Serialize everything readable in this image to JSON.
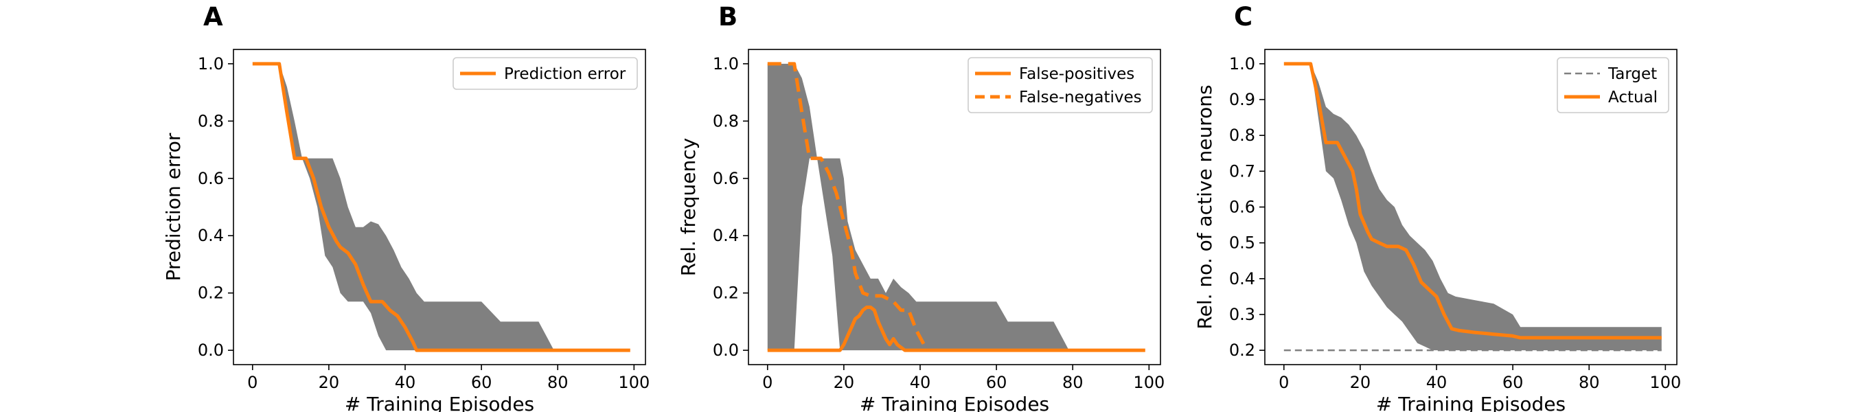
{
  "colors": {
    "line": "#ff7f0e",
    "band": "#808080",
    "target": "#808080",
    "axis": "#000000"
  },
  "chart_data": [
    {
      "type": "line",
      "panel": "A",
      "xlabel": "# Training Episodes",
      "ylabel": "Prediction error",
      "xlim": [
        -5,
        103
      ],
      "ylim": [
        -0.05,
        1.05
      ],
      "xticks": [
        0,
        20,
        40,
        60,
        80,
        100
      ],
      "yticks": [
        0.0,
        0.2,
        0.4,
        0.6,
        0.8,
        1.0
      ],
      "ytick_labels": [
        "0.0",
        "0.2",
        "0.4",
        "0.6",
        "0.8",
        "1.0"
      ],
      "legend": {
        "position": "top-right",
        "entries": [
          {
            "label": "Prediction error",
            "style": "solid"
          }
        ]
      },
      "band": {
        "x": [
          0,
          7,
          9,
          11,
          13,
          15,
          17,
          19,
          21,
          23,
          25,
          27,
          29,
          31,
          33,
          35,
          37,
          39,
          41,
          43,
          45,
          50,
          60,
          65,
          70,
          75,
          77,
          79,
          85,
          90,
          95,
          99
        ],
        "upper": [
          1.0,
          1.0,
          0.92,
          0.8,
          0.67,
          0.67,
          0.67,
          0.67,
          0.67,
          0.6,
          0.5,
          0.43,
          0.43,
          0.45,
          0.44,
          0.4,
          0.35,
          0.29,
          0.25,
          0.2,
          0.17,
          0.17,
          0.17,
          0.1,
          0.1,
          0.1,
          0.05,
          0.0,
          0.0,
          0.0,
          0.0,
          0.0
        ],
        "lower": [
          1.0,
          1.0,
          0.8,
          0.67,
          0.67,
          0.6,
          0.5,
          0.33,
          0.29,
          0.2,
          0.17,
          0.17,
          0.17,
          0.13,
          0.05,
          0.0,
          0.0,
          0.0,
          0.0,
          0.0,
          0.0,
          0.0,
          0.0,
          0.0,
          0.0,
          0.0,
          0.0,
          0.0,
          0.0,
          0.0,
          0.0,
          0.0
        ]
      },
      "series": [
        {
          "name": "Prediction error",
          "style": "solid",
          "x": [
            0,
            7,
            9,
            11,
            14,
            16,
            18,
            20,
            22,
            23,
            25,
            27,
            29,
            30,
            31,
            33,
            34,
            36,
            38,
            40,
            42,
            43,
            45,
            50,
            60,
            70,
            80,
            90,
            99
          ],
          "values": [
            1.0,
            1.0,
            0.83,
            0.67,
            0.67,
            0.6,
            0.5,
            0.43,
            0.38,
            0.36,
            0.34,
            0.3,
            0.23,
            0.2,
            0.17,
            0.17,
            0.17,
            0.14,
            0.12,
            0.08,
            0.03,
            0.0,
            0.0,
            0.0,
            0.0,
            0.0,
            0.0,
            0.0,
            0.0
          ]
        }
      ]
    },
    {
      "type": "line",
      "panel": "B",
      "xlabel": "# Training Episodes",
      "ylabel": "Rel. frequency",
      "xlim": [
        -5,
        103
      ],
      "ylim": [
        -0.05,
        1.05
      ],
      "xticks": [
        0,
        20,
        40,
        60,
        80,
        100
      ],
      "yticks": [
        0.0,
        0.2,
        0.4,
        0.6,
        0.8,
        1.0
      ],
      "ytick_labels": [
        "0.0",
        "0.2",
        "0.4",
        "0.6",
        "0.8",
        "1.0"
      ],
      "legend": {
        "position": "top-right",
        "entries": [
          {
            "label": "False-positives",
            "style": "solid"
          },
          {
            "label": "False-negatives",
            "style": "dashed"
          }
        ]
      },
      "band": {
        "x": [
          0,
          7,
          9,
          11,
          13,
          15,
          17,
          19,
          20,
          21,
          23,
          25,
          27,
          29,
          31,
          33,
          35,
          37,
          39,
          41,
          43,
          45,
          50,
          60,
          63,
          70,
          75,
          77,
          79,
          85,
          90,
          99
        ],
        "upper": [
          1.0,
          1.0,
          0.95,
          0.85,
          0.67,
          0.67,
          0.67,
          0.67,
          0.6,
          0.45,
          0.35,
          0.3,
          0.25,
          0.25,
          0.2,
          0.25,
          0.22,
          0.2,
          0.17,
          0.17,
          0.17,
          0.17,
          0.17,
          0.17,
          0.1,
          0.1,
          0.1,
          0.05,
          0.0,
          0.0,
          0.0,
          0.0
        ],
        "lower": [
          0.0,
          0.0,
          0.5,
          0.67,
          0.67,
          0.5,
          0.33,
          0.0,
          0.0,
          0.0,
          0.0,
          0.0,
          0.0,
          0.0,
          0.0,
          0.0,
          0.0,
          0.0,
          0.0,
          0.0,
          0.0,
          0.0,
          0.0,
          0.0,
          0.0,
          0.0,
          0.0,
          0.0,
          0.0,
          0.0,
          0.0,
          0.0
        ]
      },
      "series": [
        {
          "name": "False-positives",
          "style": "solid",
          "x": [
            0,
            10,
            19,
            20,
            21,
            22,
            23,
            24,
            25,
            26,
            27,
            28,
            29,
            30,
            31,
            32,
            33,
            34,
            35,
            36,
            37,
            40,
            50,
            60,
            70,
            80,
            90,
            99
          ],
          "values": [
            0.0,
            0.0,
            0.0,
            0.02,
            0.05,
            0.08,
            0.11,
            0.12,
            0.14,
            0.15,
            0.15,
            0.14,
            0.1,
            0.07,
            0.04,
            0.02,
            0.04,
            0.02,
            0.01,
            0.0,
            0.0,
            0.0,
            0.0,
            0.0,
            0.0,
            0.0,
            0.0,
            0.0
          ]
        },
        {
          "name": "False-negatives",
          "style": "dashed",
          "x": [
            0,
            7,
            9,
            11,
            14,
            16,
            18,
            20,
            22,
            23,
            25,
            27,
            30,
            33,
            35,
            37,
            39,
            41,
            42
          ],
          "values": [
            1.0,
            1.0,
            0.83,
            0.67,
            0.67,
            0.62,
            0.55,
            0.45,
            0.35,
            0.27,
            0.2,
            0.19,
            0.19,
            0.17,
            0.14,
            0.14,
            0.07,
            0.02,
            0.0
          ]
        }
      ]
    },
    {
      "type": "line",
      "panel": "C",
      "xlabel": "# Training Episodes",
      "ylabel": "Rel. no. of active neurons",
      "xlim": [
        -5,
        103
      ],
      "ylim": [
        0.16,
        1.04
      ],
      "xticks": [
        0,
        20,
        40,
        60,
        80,
        100
      ],
      "yticks": [
        0.2,
        0.3,
        0.4,
        0.5,
        0.6,
        0.7,
        0.8,
        0.9,
        1.0
      ],
      "ytick_labels": [
        "0.2",
        "0.3",
        "0.4",
        "0.5",
        "0.6",
        "0.7",
        "0.8",
        "0.9",
        "1.0"
      ],
      "legend": {
        "position": "top-right",
        "entries": [
          {
            "label": "Target",
            "style": "dashed"
          },
          {
            "label": "Actual",
            "style": "solid"
          }
        ]
      },
      "band": {
        "x": [
          0,
          7,
          9,
          11,
          13,
          15,
          17,
          19,
          21,
          23,
          25,
          27,
          29,
          31,
          33,
          35,
          37,
          39,
          41,
          43,
          45,
          50,
          55,
          60,
          62,
          70,
          80,
          90,
          99
        ],
        "upper": [
          1.0,
          1.0,
          0.95,
          0.88,
          0.86,
          0.85,
          0.83,
          0.8,
          0.76,
          0.7,
          0.65,
          0.62,
          0.6,
          0.55,
          0.52,
          0.5,
          0.48,
          0.45,
          0.4,
          0.36,
          0.35,
          0.34,
          0.33,
          0.3,
          0.265,
          0.265,
          0.265,
          0.265,
          0.265
        ],
        "lower": [
          1.0,
          1.0,
          0.85,
          0.7,
          0.68,
          0.62,
          0.55,
          0.5,
          0.42,
          0.38,
          0.35,
          0.32,
          0.3,
          0.28,
          0.25,
          0.22,
          0.21,
          0.2,
          0.2,
          0.2,
          0.2,
          0.2,
          0.2,
          0.2,
          0.2,
          0.2,
          0.2,
          0.2,
          0.2
        ]
      },
      "series": [
        {
          "name": "Target",
          "style": "dashed",
          "x": [
            0,
            99
          ],
          "values": [
            0.2,
            0.2
          ]
        },
        {
          "name": "Actual",
          "style": "solid",
          "x": [
            0,
            7,
            9,
            11,
            14,
            16,
            18,
            19,
            20,
            22,
            23,
            25,
            27,
            30,
            32,
            34,
            36,
            38,
            40,
            42,
            44,
            46,
            50,
            55,
            60,
            62,
            70,
            80,
            90,
            99
          ],
          "values": [
            1.0,
            1.0,
            0.9,
            0.78,
            0.78,
            0.74,
            0.7,
            0.65,
            0.58,
            0.53,
            0.51,
            0.5,
            0.49,
            0.49,
            0.48,
            0.44,
            0.39,
            0.37,
            0.35,
            0.3,
            0.26,
            0.255,
            0.25,
            0.245,
            0.24,
            0.235,
            0.235,
            0.235,
            0.235,
            0.235
          ]
        }
      ]
    }
  ]
}
